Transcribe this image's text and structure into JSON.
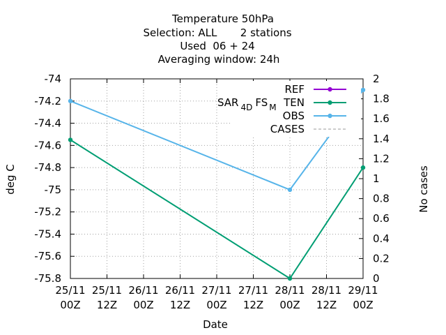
{
  "chart_data": {
    "type": "line",
    "title_lines": [
      "Temperature 50hPa",
      "Selection: ALL       2 stations",
      "Used  06 + 24",
      "Averaging window: 24h"
    ],
    "xlabel": "Date",
    "ylabel": "deg C",
    "y2label": "No cases",
    "x_ticks": [
      {
        "l1": "25/11",
        "l2": "00Z"
      },
      {
        "l1": "25/11",
        "l2": "12Z"
      },
      {
        "l1": "26/11",
        "l2": "00Z"
      },
      {
        "l1": "26/11",
        "l2": "12Z"
      },
      {
        "l1": "27/11",
        "l2": "00Z"
      },
      {
        "l1": "27/11",
        "l2": "12Z"
      },
      {
        "l1": "28/11",
        "l2": "00Z"
      },
      {
        "l1": "28/11",
        "l2": "12Z"
      },
      {
        "l1": "29/11",
        "l2": "00Z"
      }
    ],
    "ylim": [
      -75.8,
      -74.0
    ],
    "y_ticks": [
      "-74",
      "-74.2",
      "-74.4",
      "-74.6",
      "-74.8",
      "-75",
      "-75.2",
      "-75.4",
      "-75.6",
      "-75.8"
    ],
    "y2lim": [
      0,
      2
    ],
    "y2_ticks": [
      "2",
      "1.8",
      "1.6",
      "1.4",
      "1.2",
      "1",
      "0.8",
      "0.6",
      "0.4",
      "0.2",
      "0"
    ],
    "legend_experiment": "SAR_4D FS_M",
    "legend_experiment_parts": {
      "a": "SAR",
      "b": "4D",
      "c": "FS",
      "d": "M"
    },
    "legend_position": "top-right",
    "grid": true,
    "series": [
      {
        "name": "REF",
        "color": "#9400d3",
        "axis": "y",
        "x": [],
        "values": []
      },
      {
        "name": "TEN",
        "color": "#009e73",
        "axis": "y",
        "x": [
          0,
          6,
          8
        ],
        "values": [
          -74.55,
          -75.8,
          -74.8
        ]
      },
      {
        "name": "OBS",
        "color": "#56b4e9",
        "axis": "y",
        "x": [
          0,
          6,
          8
        ],
        "values": [
          -74.2,
          -75.0,
          -74.1
        ]
      },
      {
        "name": "CASES",
        "color": "#999999",
        "axis": "y2",
        "dashed": true,
        "x": [],
        "values": []
      }
    ]
  }
}
